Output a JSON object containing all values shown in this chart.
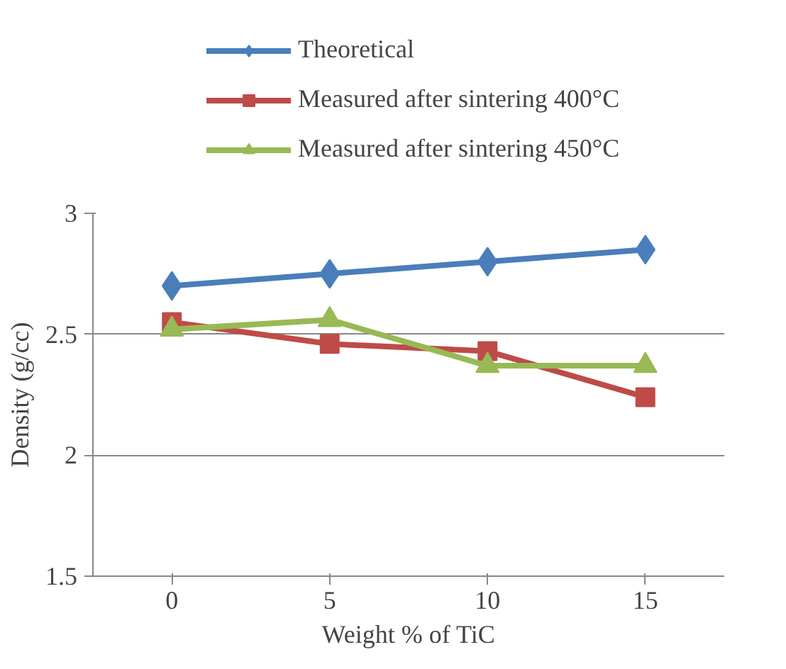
{
  "chart_data": {
    "type": "line",
    "xlabel": "Weight % of TiC",
    "ylabel": "Density (g/cc)",
    "categories": [
      "0",
      "5",
      "10",
      "15"
    ],
    "series": [
      {
        "name": "Theoretical",
        "color": "#4a7ebb",
        "marker": "diamond",
        "values": [
          2.7,
          2.75,
          2.8,
          2.85
        ]
      },
      {
        "name": "Measured after sintering 400°C",
        "color": "#be4b48",
        "marker": "square",
        "values": [
          2.55,
          2.46,
          2.43,
          2.24
        ]
      },
      {
        "name": "Measured after sintering 450°C",
        "color": "#98b954",
        "marker": "triangle",
        "values": [
          2.52,
          2.56,
          2.37,
          2.37
        ]
      }
    ],
    "ylim": [
      1.5,
      3
    ],
    "yticks": [
      1.5,
      2,
      2.5,
      3
    ],
    "grid": "y",
    "legend": "top"
  }
}
